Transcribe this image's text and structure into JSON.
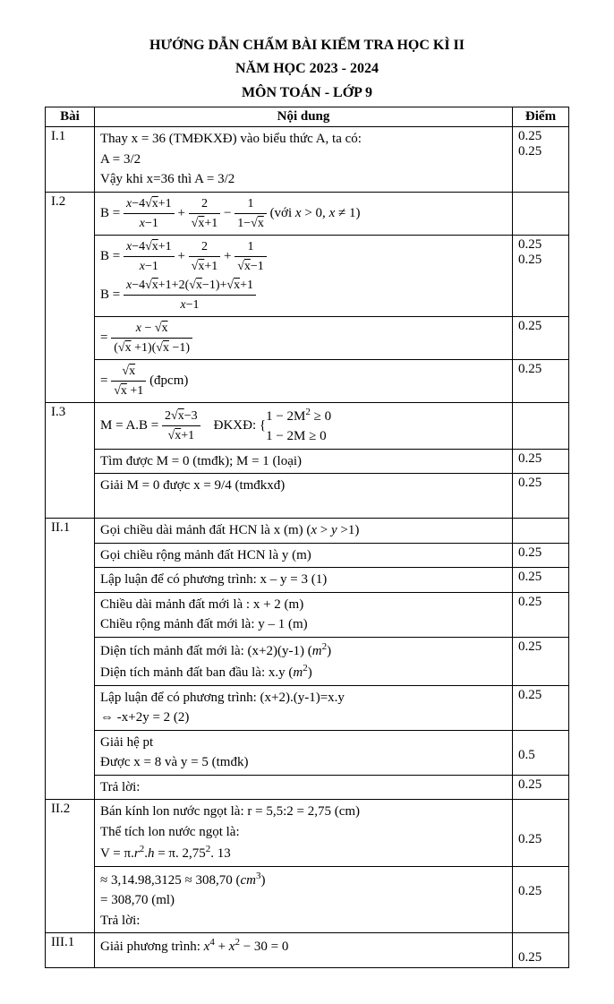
{
  "header": {
    "line1": "HƯỚNG DẪN CHẤM BÀI KIỂM TRA HỌC KÌ II",
    "line2": "NĂM HỌC 2023 - 2024",
    "line3": "MÔN TOÁN - LỚP 9"
  },
  "columns": {
    "bai": "Bài",
    "noidung": "Nội dung",
    "diem": "Điểm"
  },
  "rows": [
    {
      "bai": "I.1",
      "content_lines": [
        "Thay x = 36 (TMĐKXĐ) vào biểu thức A, ta có:",
        "A = 3/2",
        "Vậy  khi x=36 thì A = 3/2"
      ],
      "diem_lines": [
        "0.25",
        "0.25",
        ""
      ]
    },
    {
      "bai": "I.2",
      "sub": [
        {
          "html": "B = <span class='frac'><span class='num'><span class='math'>x</span>−4√<span class='sq'>x</span>+1</span><span class='den'><span class='math'>x</span>−1</span></span> + <span class='frac'><span class='num'>2</span><span class='den'>√<span class='sq'>x</span>+1</span></span> − <span class='frac'><span class='num'>1</span><span class='den'>1−√<span class='sq'>x</span></span></span> (với <span class='math'>x</span> > 0, <span class='math'>x</span> ≠ 1)",
          "diem": ""
        },
        {
          "html": "B = <span class='frac'><span class='num'><span class='math'>x</span>−4√<span class='sq'>x</span>+1</span><span class='den'><span class='math'>x</span>−1</span></span> + <span class='frac'><span class='num'>2</span><span class='den'>√<span class='sq'>x</span>+1</span></span> + <span class='frac'><span class='num'>1</span><span class='den'>√<span class='sq'>x</span>−1</span></span><br>B = <span class='frac'><span class='num'><span class='math'>x</span>−4√<span class='sq'>x</span>+1+2(√<span class='sq'>x</span>−1)+√<span class='sq'>x</span>+1</span><span class='den'><span class='math'>x</span>−1</span></span>",
          "diem": "0.25<br>0.25"
        },
        {
          "html": "= <span class='frac'><span class='num'><span class='math'>x</span> − √<span class='sq'>x</span></span><span class='den'>(√<span class='sq'>x</span> +1)(√<span class='sq'>x</span> −1)</span></span>",
          "diem": "0.25"
        },
        {
          "html": "= <span class='frac'><span class='num'>√<span class='sq'>x</span></span><span class='den'>√<span class='sq'>x</span> +1</span></span> (đpcm)",
          "diem": "0.25"
        }
      ]
    },
    {
      "bai": "I.3",
      "sub": [
        {
          "html": "M = A.B = <span class='frac'><span class='num'>2√<span class='sq'>x</span>−3</span><span class='den'>√<span class='sq'>x</span>+1</span></span> &nbsp;&nbsp; ĐKXĐ: {<span style='display:inline-block;vertical-align:middle'>1 − 2M<span class='sup'>2</span> ≥ 0<br>1 − 2M ≥ 0</span>",
          "diem": ""
        },
        {
          "html": "Tìm được M = 0 (tmđk); M = 1 (loại)",
          "diem": "0.25"
        },
        {
          "html": "Giải M = 0 được x = 9/4 (tmđkxđ)<br>&nbsp;",
          "diem": "0.25"
        }
      ]
    },
    {
      "bai": "II.1",
      "sub": [
        {
          "html": "Gọi chiều dài mảnh đất HCN là x (m) (<span class='math'>x</span> > <span class='math'>y</span> >1)",
          "diem": ""
        },
        {
          "html": "Gọi chiều rộng mảnh đất HCN là y (m)",
          "diem": "0.25"
        },
        {
          "html": "Lập luận để có phương trình: x – y = 3 (1)",
          "diem": "0.25"
        },
        {
          "html": "Chiều dài mảnh đất mới là : x + 2 (m)<br>Chiều rộng mảnh đất mới là: y – 1 (m)",
          "diem": "0.25"
        },
        {
          "html": "Diện tích mảnh đất mới là: (x+2)(y-1) (<span class='math'>m</span><span class='sup'>2</span>)<br>Diện tích mảnh đất ban đầu là: x.y (<span class='math'>m</span><span class='sup'>2</span>)",
          "diem": "0.25"
        },
        {
          "html": "Lập luận để có phương trình: (x+2).(y-1)=x.y<br>⇔ -x+2y = 2 (2)",
          "diem": "0.25"
        },
        {
          "html": "Giải hệ pt<br>Được x = 8 và y = 5 (tmđk)",
          "diem": "<br>0.5"
        },
        {
          "html": "Trả lời:",
          "diem": "0.25"
        }
      ]
    },
    {
      "bai": "II.2",
      "sub": [
        {
          "html": "Bán kính lon nước ngọt là:  r = 5,5:2 = 2,75 (cm)<br>Thể tích lon nước ngọt là:<br>V = π.<span class='math'>r</span><span class='sup'>2</span>.<span class='math'>h</span> = π. 2,75<span class='sup'>2</span>. 13",
          "diem": "<br><br>0.25"
        },
        {
          "html": "≈ 3,14.98,3125 ≈ 308,70 (<span class='math'>cm</span><span class='sup'>3</span>)<br>= 308,70 (ml)<br>Trả lời:",
          "diem": "<br>0.25"
        }
      ]
    },
    {
      "bai": "III.1",
      "content_lines": [
        "Giải phương trình: x⁴ + x² − 30 = 0",
        ""
      ],
      "diem_lines": [
        "",
        "0.25"
      ]
    }
  ]
}
